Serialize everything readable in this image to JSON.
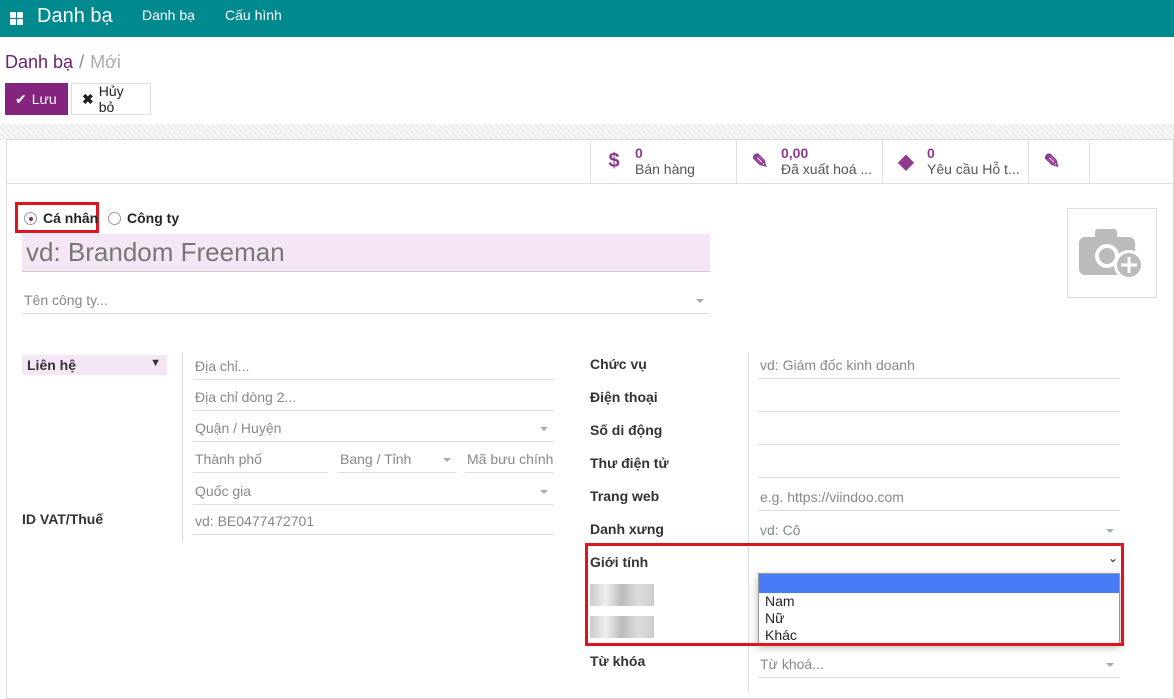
{
  "topbar": {
    "app_title": "Danh bạ",
    "menu": [
      "Danh bạ",
      "Cấu hình"
    ]
  },
  "breadcrumb": {
    "parent": "Danh bạ",
    "separator": "/",
    "current": "Mới"
  },
  "actions": {
    "save": "Lưu",
    "cancel": "Hủy bỏ"
  },
  "stats": [
    {
      "icon": "dollar-icon",
      "value": "0",
      "label": "Bán hàng"
    },
    {
      "icon": "edit-icon",
      "value": "0,00",
      "label": "Đã xuất hoá ..."
    },
    {
      "icon": "ticket-icon",
      "value": "0",
      "label": "Yêu cầu Hỗ t..."
    },
    {
      "icon": "edit-icon",
      "value": "",
      "label": ""
    }
  ],
  "type_radio": {
    "options": [
      "Cá nhân",
      "Công ty"
    ],
    "selected": "Cá nhân"
  },
  "name_placeholder": "vd: Brandom Freeman",
  "company_placeholder": "Tên công ty...",
  "address": {
    "type_select": "Liên hệ",
    "street": "Địa chỉ...",
    "street2": "Địa chỉ dòng 2...",
    "district": "Quận / Huyện",
    "city": "Thành phố",
    "state": "Bang / Tỉnh",
    "zip": "Mã bưu chính",
    "country": "Quốc gia"
  },
  "vat": {
    "label": "ID VAT/Thuế",
    "placeholder": "vd: BE0477472701"
  },
  "right_fields": [
    {
      "label": "Chức vụ",
      "placeholder": "vd: Giám đốc kinh doanh"
    },
    {
      "label": "Điện thoại",
      "placeholder": ""
    },
    {
      "label": "Số di động",
      "placeholder": ""
    },
    {
      "label": "Thư điện tử",
      "placeholder": ""
    },
    {
      "label": "Trang web",
      "placeholder": "e.g. https://viindoo.com"
    },
    {
      "label": "Danh xưng",
      "placeholder": "vd: Cô"
    }
  ],
  "gender": {
    "label": "Giới tính",
    "value": "",
    "options": [
      "",
      "Nam",
      "Nữ",
      "Khác"
    ]
  },
  "tags": {
    "label": "Từ khóa",
    "placeholder": "Từ khoá..."
  },
  "colors": {
    "topbar": "#00898e",
    "primary": "#84247f",
    "highlight": "#e0141e"
  }
}
